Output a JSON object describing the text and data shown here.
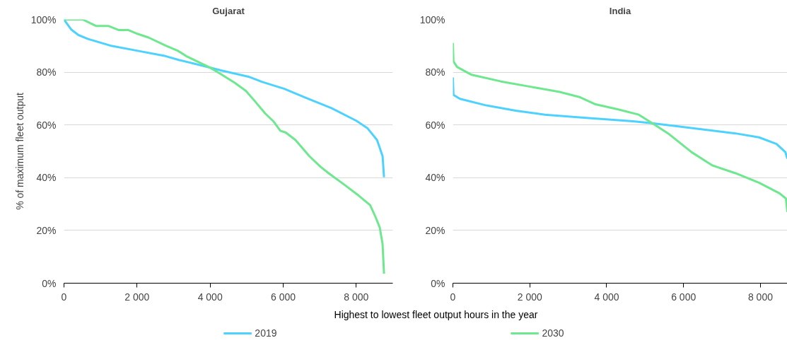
{
  "chart_data": [
    {
      "type": "line",
      "title": "Gujarat",
      "ylabel": "% of maximum fleet output",
      "xlabel": "Highest to lowest fleet output hours in the year",
      "legend": "bottom",
      "grid": "y",
      "xlim": [
        0,
        9000
      ],
      "ylim": [
        0,
        100
      ],
      "xticks": [
        0,
        {
          "value": 2000,
          "label": "2 000"
        },
        {
          "value": 4000,
          "label": "4 000"
        },
        {
          "value": 6000,
          "label": "6 000"
        },
        {
          "value": 8000,
          "label": "8 000"
        }
      ],
      "yticks": [
        {
          "value": 0,
          "label": "0%"
        },
        {
          "value": 20,
          "label": "20%"
        },
        {
          "value": 40,
          "label": "40%"
        },
        {
          "value": 60,
          "label": "60%"
        },
        {
          "value": 80,
          "label": "80%"
        },
        {
          "value": 100,
          "label": "100%"
        }
      ],
      "series": [
        {
          "name": "2019",
          "color": "#4dd2ff",
          "x": [
            0,
            91,
            204,
            394,
            659,
            1264,
            2021,
            2778,
            3157,
            3838,
            4292,
            5049,
            5427,
            6033,
            6563,
            7320,
            8001,
            8304,
            8569,
            8720,
            8760
          ],
          "values": [
            100,
            98.2,
            96.1,
            94.1,
            92.6,
            90.1,
            88.1,
            86.1,
            84.6,
            82.3,
            80.7,
            78.3,
            76.3,
            73.7,
            70.6,
            66.4,
            61.6,
            58.8,
            54.3,
            48.2,
            40.2
          ]
        },
        {
          "name": "2030",
          "color": "#6ee88e",
          "x": [
            0,
            507,
            734,
            885,
            1226,
            1491,
            1756,
            2021,
            2324,
            2778,
            3119,
            3346,
            3687,
            3989,
            4292,
            4671,
            4974,
            5201,
            5504,
            5731,
            5920,
            6071,
            6336,
            6715,
            7017,
            7244,
            7698,
            8077,
            8380,
            8531,
            8645,
            8720,
            8760
          ],
          "values": [
            100,
            100,
            98.5,
            97.5,
            97.5,
            96,
            96,
            94.5,
            93.1,
            90.1,
            88.1,
            86.1,
            83.8,
            81.8,
            79.3,
            76,
            73,
            69.4,
            64.4,
            61.4,
            57.8,
            57.1,
            54.3,
            48.2,
            44.2,
            41.7,
            37.1,
            33.1,
            29.6,
            25,
            21,
            14.9,
            3.6
          ]
        }
      ]
    },
    {
      "type": "line",
      "title": "India",
      "grid": "y",
      "tick_labels": "xy",
      "xlim": [
        0,
        8700
      ],
      "ylim": [
        0,
        100
      ],
      "xticks": [
        0,
        {
          "value": 2000,
          "label": "2 000"
        },
        {
          "value": 4000,
          "label": "4 000"
        },
        {
          "value": 6000,
          "label": "6 000"
        },
        {
          "value": 8000,
          "label": "8 000"
        }
      ],
      "yticks": [
        {
          "value": 0,
          "label": "0%"
        },
        {
          "value": 20,
          "label": "20%"
        },
        {
          "value": 40,
          "label": "40%"
        },
        {
          "value": 60,
          "label": "60%"
        },
        {
          "value": 80,
          "label": "80%"
        },
        {
          "value": 100,
          "label": "100%"
        }
      ],
      "series": [
        {
          "color": "#4dd2ff",
          "x": [
            0,
            15,
            183,
            869,
            1632,
            2395,
            3539,
            4682,
            5216,
            5826,
            7351,
            7962,
            8419,
            8648,
            8700
          ],
          "values": [
            78,
            71.4,
            69.9,
            67.4,
            65.4,
            63.9,
            62.6,
            61.4,
            60.6,
            59.5,
            56.8,
            55.3,
            52.8,
            49.7,
            47.2
          ]
        },
        {
          "color": "#6ee88e",
          "x": [
            0,
            15,
            107,
            488,
            1251,
            2013,
            2776,
            3310,
            3691,
            4301,
            4835,
            5216,
            5598,
            6208,
            6742,
            7351,
            7962,
            8495,
            8663,
            8700
          ],
          "values": [
            91.1,
            84.1,
            82,
            79,
            76.5,
            74.5,
            72.5,
            70.5,
            67.9,
            65.9,
            63.9,
            60.4,
            56.8,
            49.7,
            44.7,
            41.7,
            38.1,
            34.1,
            32.1,
            27
          ]
        }
      ]
    }
  ]
}
